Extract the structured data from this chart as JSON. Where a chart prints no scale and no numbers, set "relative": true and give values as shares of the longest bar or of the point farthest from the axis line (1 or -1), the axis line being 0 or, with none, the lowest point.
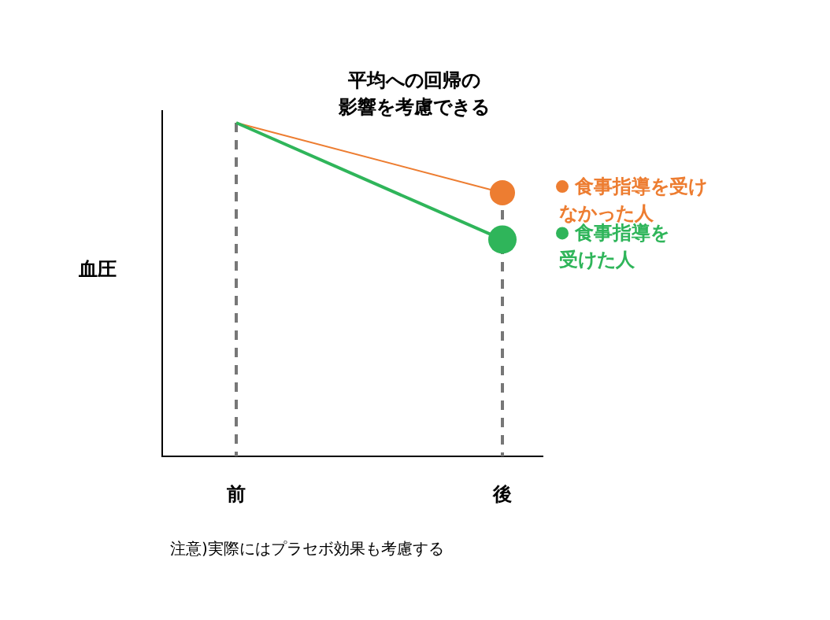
{
  "chart_data": {
    "type": "line",
    "title": "平均への回帰の影響を考慮できる",
    "ylabel": "血圧",
    "categories": [
      "前",
      "後"
    ],
    "relative": true,
    "marker": "circle",
    "legend": "right",
    "series": [
      {
        "name": "食事指導を受けなかった人",
        "color": "#ed7d31",
        "values": [
          1,
          0.79
        ]
      },
      {
        "name": "食事指導を受けた人",
        "color": "#2fb55a",
        "values": [
          1,
          0.65
        ]
      }
    ],
    "ref_lines": [
      {
        "axis": "x",
        "value": "前",
        "color": "#777777",
        "line_style": "dashed"
      },
      {
        "axis": "x",
        "value": "後",
        "color": "#777777",
        "line_style": "dashed"
      }
    ],
    "annotations": [
      "注意)実際にはプラセボ効果も考慮する"
    ]
  }
}
